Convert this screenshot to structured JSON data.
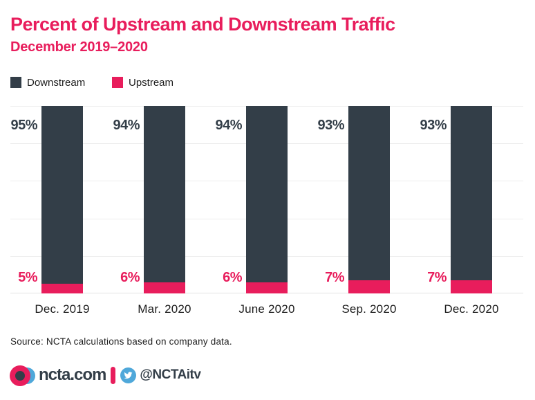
{
  "header": {
    "title": "Percent of Upstream and Downstream Traffic",
    "subtitle": "December 2019–2020"
  },
  "legend": {
    "items": [
      {
        "label": "Downstream",
        "color": "#333e48"
      },
      {
        "label": "Upstream",
        "color": "#e81d5c"
      }
    ]
  },
  "chart_data": {
    "type": "bar",
    "stacked": true,
    "title": "Percent of Upstream and Downstream Traffic",
    "subtitle": "December 2019–2020",
    "categories": [
      "Dec. 2019",
      "Mar. 2020",
      "June 2020",
      "Sep. 2020",
      "Dec. 2020"
    ],
    "series": [
      {
        "name": "Downstream",
        "color": "#333e48",
        "values": [
          95,
          94,
          94,
          93,
          93
        ],
        "labels": [
          "95%",
          "94%",
          "94%",
          "93%",
          "93%"
        ]
      },
      {
        "name": "Upstream",
        "color": "#e81d5c",
        "values": [
          5,
          6,
          6,
          7,
          7
        ],
        "labels": [
          "5%",
          "6%",
          "6%",
          "7%",
          "7%"
        ]
      }
    ],
    "ylim": [
      0,
      100
    ],
    "gridlines_percent": [
      0,
      20,
      40,
      60,
      80,
      100
    ],
    "grid": true,
    "legend_position": "top-left",
    "value_label_position": "left-of-bar"
  },
  "footer": {
    "source": "Source: NCTA calculations based on company data.",
    "brand": {
      "site": "ncta.com",
      "handle": "@NCTAitv",
      "logo_icon": "ncta-logo",
      "twitter_icon": "twitter-bird"
    }
  },
  "colors": {
    "accent_pink": "#e81d5c",
    "dark_slate": "#333e48",
    "twitter_blue": "#4fa8da",
    "gridline": "#ececec",
    "text_dark": "#1d1d1d",
    "background": "#ffffff"
  }
}
